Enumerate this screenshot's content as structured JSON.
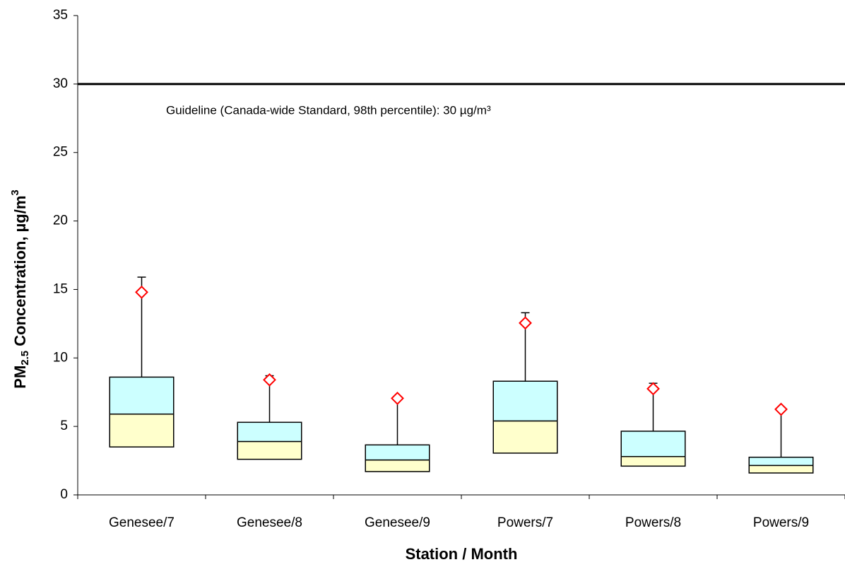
{
  "chart_data": {
    "type": "box",
    "ylabel_parts": [
      "PM",
      "2.5",
      " Concentration, µg/m",
      "3"
    ],
    "xlabel": "Station / Month",
    "categories": [
      "Genesee/7",
      "Genesee/8",
      "Genesee/9",
      "Powers/7",
      "Powers/8",
      "Powers/9"
    ],
    "q1": [
      3.5,
      2.6,
      1.7,
      3.05,
      2.1,
      1.6
    ],
    "median": [
      5.9,
      3.9,
      2.55,
      5.4,
      2.8,
      2.15
    ],
    "q3": [
      8.6,
      5.3,
      3.65,
      8.3,
      4.65,
      2.75
    ],
    "max": [
      15.9,
      8.7,
      7.1,
      13.3,
      8.15,
      6.3
    ],
    "mean": [
      14.8,
      8.4,
      7.05,
      12.55,
      7.75,
      6.25
    ],
    "lower_color": "#ffffcc",
    "upper_color": "#ccffff",
    "mean_color": "#ff0000",
    "guideline": {
      "value": 30,
      "label": "Guideline (Canada-wide Standard, 98th percentile): 30 µg/m³"
    },
    "ylim": [
      0,
      35
    ],
    "yticks": [
      0,
      5,
      10,
      15,
      20,
      25,
      30,
      35
    ]
  }
}
